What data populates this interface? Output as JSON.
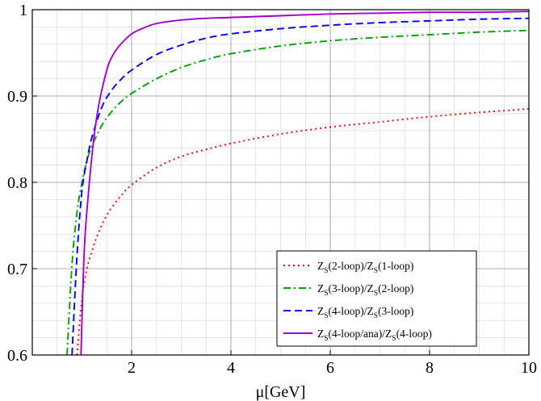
{
  "chart_data": {
    "type": "line",
    "title": "",
    "xlabel": "μ[GeV]",
    "ylabel": "",
    "xlim": [
      0.0,
      10.0
    ],
    "ylim": [
      0.6,
      1.0
    ],
    "x_ticks": [
      2,
      4,
      6,
      8,
      10
    ],
    "x_tick_labels": [
      "2",
      "4",
      "6",
      "8",
      "10"
    ],
    "y_ticks": [
      0.6,
      0.7,
      0.8,
      0.9,
      1.0
    ],
    "y_tick_labels": [
      "0.6",
      "0.7",
      "0.8",
      "0.9",
      "1"
    ],
    "grid": true,
    "minor_grid": true,
    "legend_position": "bottom-right",
    "series": [
      {
        "name": "Z_S(2-loop)/Z_S(1-loop)",
        "label_parts": [
          [
            "Z",
            ""
          ],
          [
            "S",
            "sub"
          ],
          [
            "(2-loop)/Z",
            ""
          ],
          [
            "S",
            "sub"
          ],
          [
            "(1-loop)",
            ""
          ]
        ],
        "color": "#ff0000",
        "dash": "2,4",
        "x": [
          0.9,
          1.0,
          1.1,
          1.2,
          1.3,
          1.5,
          1.75,
          2.0,
          2.5,
          3.0,
          3.5,
          4.0,
          5.0,
          6.0,
          7.0,
          8.0,
          9.0,
          10.0
        ],
        "y": [
          0.6,
          0.665,
          0.7,
          0.72,
          0.737,
          0.762,
          0.782,
          0.797,
          0.817,
          0.83,
          0.838,
          0.845,
          0.856,
          0.864,
          0.87,
          0.876,
          0.881,
          0.885
        ]
      },
      {
        "name": "Z_S(3-loop)/Z_S(2-loop)",
        "label_parts": [
          [
            "Z",
            ""
          ],
          [
            "S",
            "sub"
          ],
          [
            "(3-loop)/Z",
            ""
          ],
          [
            "S",
            "sub"
          ],
          [
            "(2-loop)",
            ""
          ]
        ],
        "color": "#00a000",
        "dash": "9,4,2,4",
        "x": [
          0.7,
          0.8,
          0.9,
          1.0,
          1.1,
          1.2,
          1.4,
          1.6,
          1.8,
          2.0,
          2.5,
          3.0,
          3.5,
          4.0,
          5.0,
          6.0,
          7.0,
          8.0,
          9.0,
          10.0
        ],
        "y": [
          0.6,
          0.705,
          0.765,
          0.8,
          0.825,
          0.842,
          0.866,
          0.882,
          0.894,
          0.903,
          0.92,
          0.933,
          0.942,
          0.949,
          0.958,
          0.964,
          0.968,
          0.971,
          0.974,
          0.976
        ]
      },
      {
        "name": "Z_S(4-loop)/Z_S(3-loop)",
        "label_parts": [
          [
            "Z",
            ""
          ],
          [
            "S",
            "sub"
          ],
          [
            "(4-loop)/Z",
            ""
          ],
          [
            "S",
            "sub"
          ],
          [
            "(3-loop)",
            ""
          ]
        ],
        "color": "#0000ff",
        "dash": "9,5",
        "x": [
          0.8,
          0.9,
          1.0,
          1.1,
          1.2,
          1.4,
          1.6,
          1.8,
          2.0,
          2.5,
          3.0,
          3.5,
          4.0,
          5.0,
          6.0,
          7.0,
          8.0,
          9.0,
          10.0
        ],
        "y": [
          0.6,
          0.715,
          0.79,
          0.825,
          0.852,
          0.887,
          0.907,
          0.92,
          0.93,
          0.948,
          0.959,
          0.967,
          0.972,
          0.978,
          0.982,
          0.985,
          0.987,
          0.989,
          0.99
        ]
      },
      {
        "name": "Z_S(4-loop/ana)/Z_S(4-loop)",
        "label_parts": [
          [
            "Z",
            ""
          ],
          [
            "S",
            "sub"
          ],
          [
            "(4-loop/ana)/Z",
            ""
          ],
          [
            "S",
            "sub"
          ],
          [
            "(4-loop)",
            ""
          ]
        ],
        "color": "#a000d0",
        "dash": "",
        "x": [
          0.98,
          1.05,
          1.15,
          1.25,
          1.35,
          1.5,
          1.6,
          1.75,
          2.0,
          2.25,
          2.5,
          3.0,
          3.5,
          4.0,
          5.0,
          6.0,
          7.0,
          8.0,
          9.0,
          10.0
        ],
        "y": [
          0.6,
          0.725,
          0.8,
          0.856,
          0.893,
          0.93,
          0.945,
          0.958,
          0.972,
          0.979,
          0.984,
          0.988,
          0.99,
          0.991,
          0.993,
          0.995,
          0.996,
          0.997,
          0.997,
          0.998
        ]
      }
    ]
  }
}
